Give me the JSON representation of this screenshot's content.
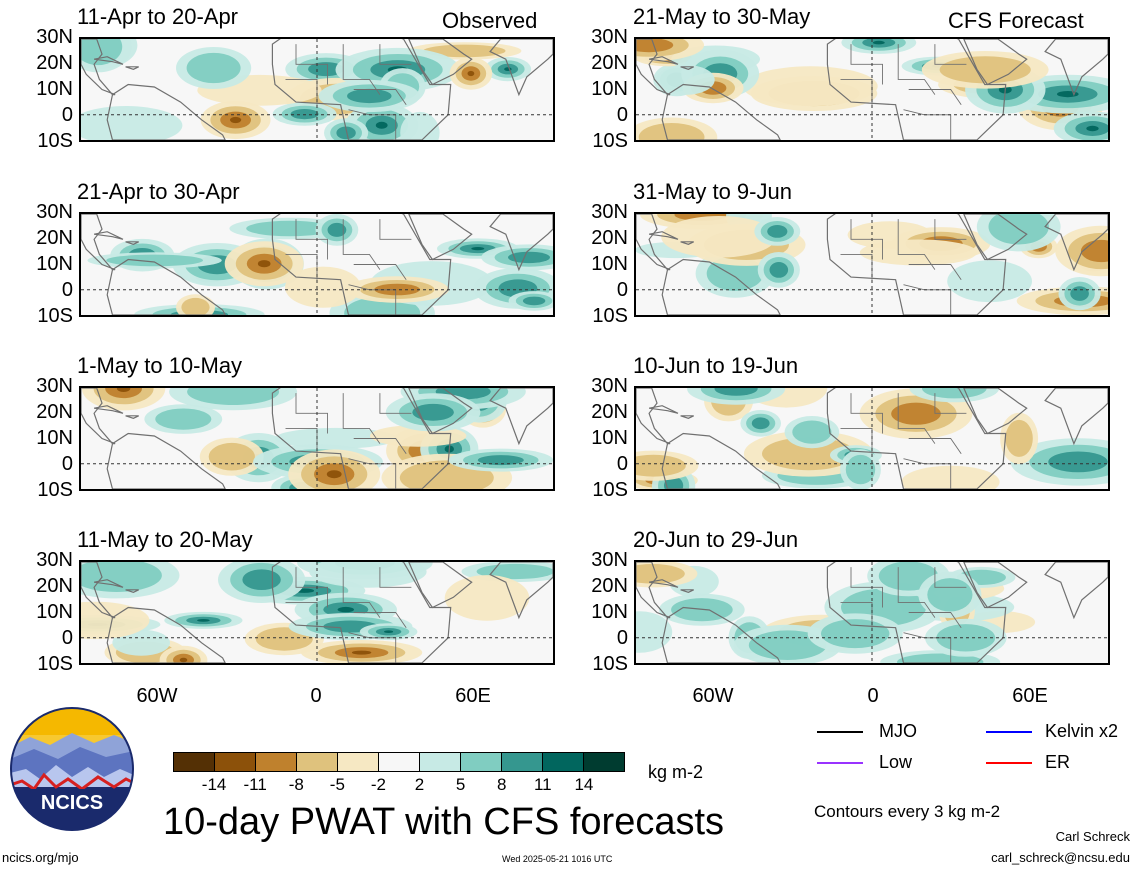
{
  "headers": {
    "observed": "Observed",
    "forecast": "CFS Forecast"
  },
  "panels_left": [
    {
      "date_range": "11-Apr to 20-Apr"
    },
    {
      "date_range": "21-Apr to 30-Apr"
    },
    {
      "date_range": "1-May to 10-May"
    },
    {
      "date_range": "11-May to 20-May"
    }
  ],
  "panels_right": [
    {
      "date_range": "21-May to 30-May"
    },
    {
      "date_range": "31-May to 9-Jun"
    },
    {
      "date_range": "10-Jun to 19-Jun"
    },
    {
      "date_range": "20-Jun to 29-Jun"
    }
  ],
  "lat_labels": [
    "30N",
    "20N",
    "10N",
    "0",
    "10S"
  ],
  "lon_labels": [
    "60W",
    "0",
    "60E"
  ],
  "colorbar": {
    "labels": [
      "-14",
      "-11",
      "-8",
      "-5",
      "-2",
      "2",
      "5",
      "8",
      "11",
      "14"
    ],
    "colors": [
      "#543005",
      "#8c510a",
      "#bf812d",
      "#dfc27d",
      "#f6e8c3",
      "#f7f7f7",
      "#c7eae5",
      "#80cdc1",
      "#35978f",
      "#01665e",
      "#003c30"
    ],
    "units": "kg m-2"
  },
  "title": "10-day PWAT with CFS forecasts",
  "legend": {
    "mjo": "MJO",
    "kelvin": "Kelvin x2",
    "low": "Low",
    "er": "ER",
    "mjo_color": "#000000",
    "kelvin_color": "#0000ff",
    "low_color": "#9933ff",
    "er_color": "#ff0000"
  },
  "contour_note": "Contours every 3 kg m-2",
  "logo_text": "NCICS",
  "site": "ncics.org/mjo",
  "timestamp": "Wed 2025-05-21 1016 UTC",
  "author": "Carl Schreck",
  "email": "carl_schreck@ncsu.edu"
}
